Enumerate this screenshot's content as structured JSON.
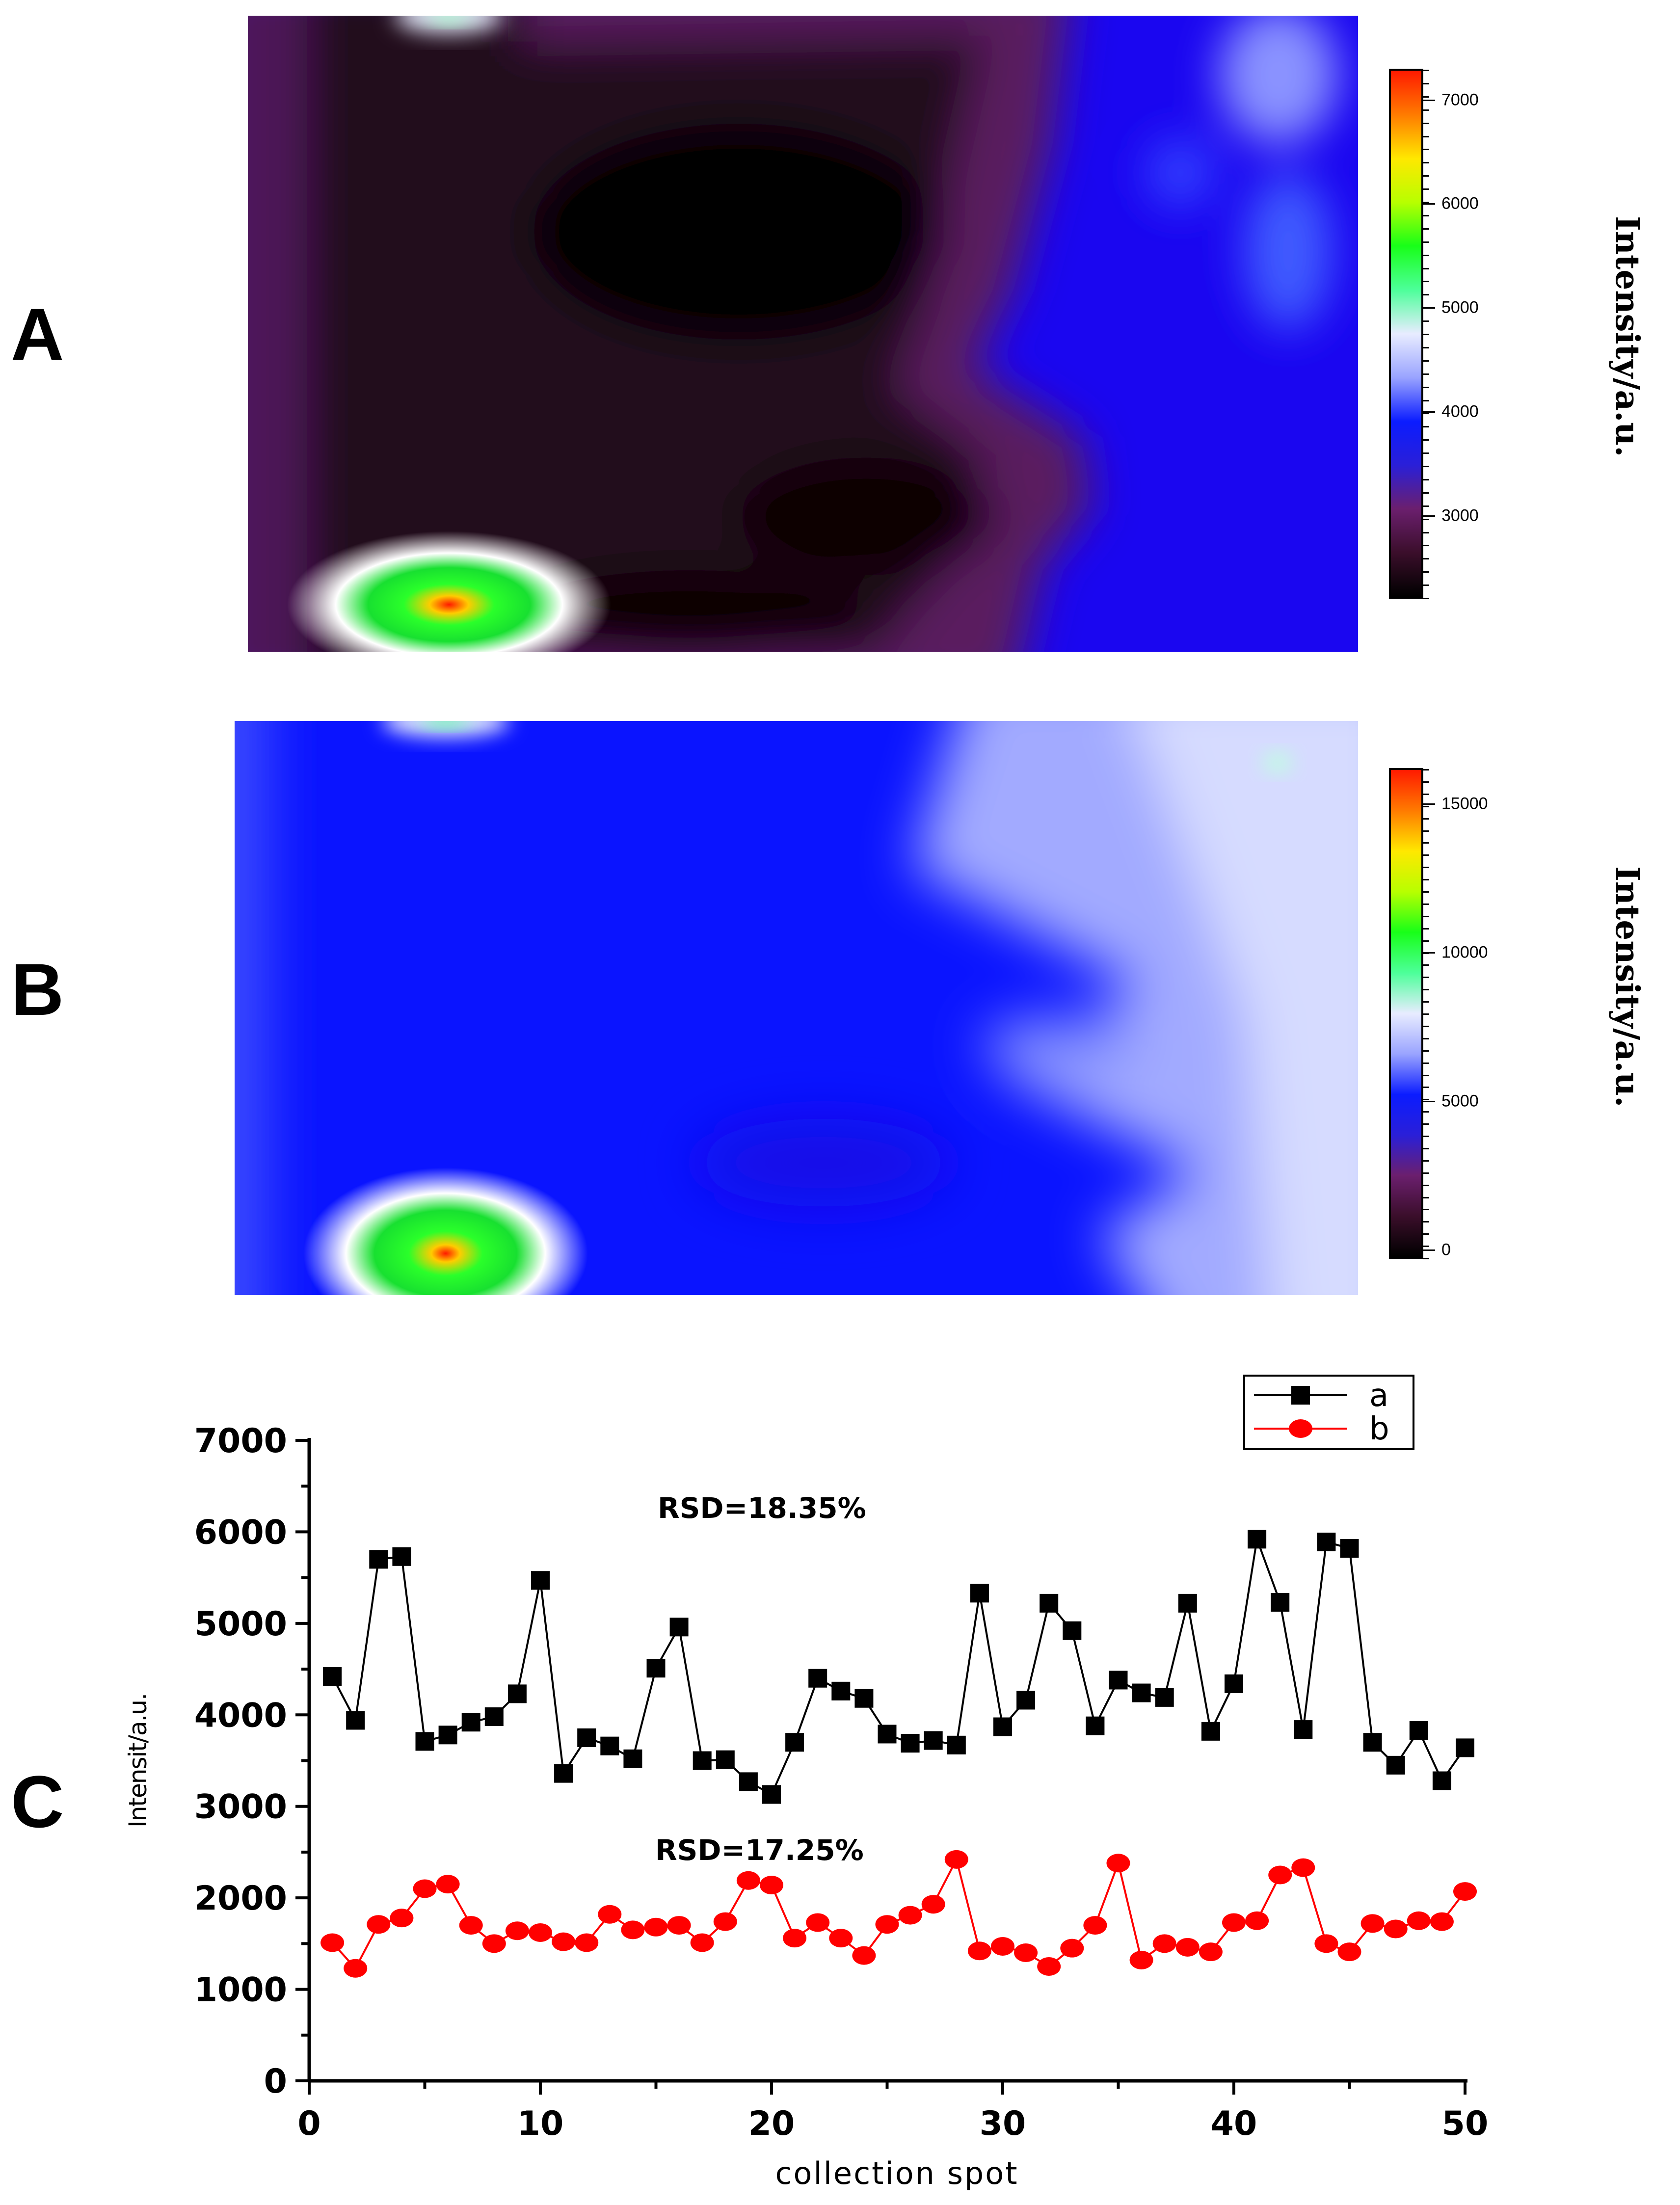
{
  "panels": {
    "a": "A",
    "b": "B",
    "c": "C"
  },
  "colorbar_a": {
    "title": "Intensity/a.u.",
    "min": 2200,
    "max": 7300,
    "labels": [
      "7000",
      "6000",
      "5000",
      "4000",
      "3000"
    ],
    "label_values": [
      7000,
      6000,
      5000,
      4000,
      3000
    ],
    "colors": [
      "#000000",
      "#3a0e2a",
      "#6b1f6e",
      "#2a1fd8",
      "#0b1cff",
      "#9aa4ff",
      "#e8ecff",
      "#4dff9a",
      "#18ff18",
      "#b8ff00",
      "#ffe800",
      "#ff7a00",
      "#ff1a00"
    ]
  },
  "colorbar_b": {
    "title": "Intensity/a.u.",
    "min": -300,
    "max": 16200,
    "labels": [
      "15000",
      "10000",
      "5000",
      "0"
    ],
    "label_values": [
      15000,
      10000,
      5000,
      0
    ],
    "colors": [
      "#000000",
      "#3a0e2a",
      "#6b1f6e",
      "#2a1fd8",
      "#0b1cff",
      "#9aa4ff",
      "#e8ecff",
      "#4dff9a",
      "#18ff18",
      "#b8ff00",
      "#ffe800",
      "#ff7a00",
      "#ff1a00"
    ]
  },
  "chart_data": {
    "type": "line",
    "title": "",
    "xlabel": "collection spot",
    "ylabel": "Intensit/a.u.",
    "xlim": [
      0,
      50
    ],
    "ylim": [
      0,
      7000
    ],
    "x_ticks": [
      "0",
      "10",
      "20",
      "30",
      "40",
      "50"
    ],
    "x_tick_values": [
      0,
      10,
      20,
      30,
      40,
      50
    ],
    "y_ticks": [
      "0",
      "1000",
      "2000",
      "3000",
      "4000",
      "5000",
      "6000",
      "7000"
    ],
    "y_tick_values": [
      0,
      1000,
      2000,
      3000,
      4000,
      5000,
      6000,
      7000
    ],
    "legend_position": "top-right",
    "x": [
      1,
      2,
      3,
      4,
      5,
      6,
      7,
      8,
      9,
      10,
      11,
      12,
      13,
      14,
      15,
      16,
      17,
      18,
      19,
      20,
      21,
      22,
      23,
      24,
      25,
      26,
      27,
      28,
      29,
      30,
      31,
      32,
      33,
      34,
      35,
      36,
      37,
      38,
      39,
      40,
      41,
      42,
      43,
      44,
      45,
      46,
      47,
      48,
      49,
      50
    ],
    "series": [
      {
        "name": "a",
        "color": "#000000",
        "marker": "square",
        "values": [
          4420,
          3940,
          5700,
          5730,
          3710,
          3780,
          3920,
          3980,
          4230,
          5470,
          3360,
          3750,
          3660,
          3520,
          4510,
          4960,
          3500,
          3510,
          3270,
          3130,
          3700,
          4400,
          4260,
          4180,
          3790,
          3690,
          3720,
          3670,
          5330,
          3870,
          4160,
          5220,
          4920,
          3880,
          4380,
          4240,
          4190,
          5220,
          3820,
          4340,
          5920,
          5230,
          3840,
          5890,
          5820,
          3700,
          3450,
          3830,
          3280,
          3640
        ]
      },
      {
        "name": "b",
        "color": "#ff0000",
        "marker": "circle",
        "values": [
          1510,
          1230,
          1710,
          1780,
          2100,
          2150,
          1700,
          1500,
          1640,
          1620,
          1520,
          1510,
          1820,
          1650,
          1680,
          1700,
          1510,
          1740,
          2190,
          2140,
          1560,
          1730,
          1560,
          1370,
          1710,
          1810,
          1930,
          2420,
          1420,
          1470,
          1400,
          1250,
          1450,
          1700,
          2380,
          1320,
          1500,
          1460,
          1410,
          1730,
          1750,
          2250,
          2330,
          1500,
          1410,
          1720,
          1660,
          1750,
          1740,
          2070
        ]
      }
    ],
    "annotations": [
      "RSD=18.35%",
      "RSD=17.25%"
    ]
  }
}
